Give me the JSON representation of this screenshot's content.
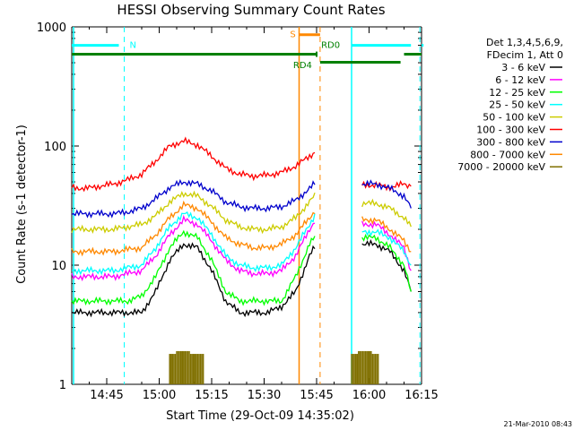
{
  "chart_data": {
    "type": "line",
    "title": "HESSI Observing Summary Count Rates",
    "xlabel": "Start Time (29-Oct-09 14:35:02)",
    "ylabel": "Count Rate (s-1 detector-1)",
    "y_scale": "log",
    "ylim": [
      1,
      1000
    ],
    "xlim": [
      "14:35",
      "16:15"
    ],
    "x_ticks": [
      "14:45",
      "15:00",
      "15:15",
      "15:30",
      "15:45",
      "16:00",
      "16:15"
    ],
    "y_ticks": [
      "1",
      "10",
      "100",
      "1000"
    ],
    "grid": false,
    "legend_position": "right",
    "legend_header": [
      "Det 1,3,4,5,6,9,",
      "FDecim 1, Att 0"
    ],
    "series": [
      {
        "name": "3 - 6 keV",
        "color": "#000000",
        "x": [
          "14:35",
          "14:39",
          "14:43",
          "14:47",
          "14:51",
          "14:55",
          "14:59",
          "15:03",
          "15:07",
          "15:11",
          "15:15",
          "15:19",
          "15:23",
          "15:27",
          "15:31",
          "15:35",
          "15:39",
          "15:43",
          "15:45",
          "15:58",
          "16:02",
          "16:06",
          "16:10",
          "16:12"
        ],
        "y": [
          4,
          4,
          4,
          4,
          4,
          4,
          6,
          11,
          15,
          14,
          9,
          5,
          4,
          4,
          4,
          4.5,
          6,
          12,
          15,
          15,
          15,
          13,
          9,
          6
        ]
      },
      {
        "name": "6 - 12 keV",
        "color": "#ff00ff",
        "x": [
          "14:35",
          "14:39",
          "14:43",
          "14:47",
          "14:51",
          "14:55",
          "14:59",
          "15:03",
          "15:07",
          "15:11",
          "15:15",
          "15:19",
          "15:23",
          "15:27",
          "15:31",
          "15:35",
          "15:39",
          "15:43",
          "15:45",
          "15:58",
          "16:02",
          "16:06",
          "16:10",
          "16:12"
        ],
        "y": [
          8,
          8,
          8,
          8,
          8.5,
          9,
          12,
          18,
          24,
          22,
          16,
          11,
          9,
          8.5,
          8.5,
          9,
          12,
          20,
          25,
          22,
          22,
          18,
          14,
          9
        ]
      },
      {
        "name": "12 - 25 keV",
        "color": "#00ff00",
        "x": [
          "14:35",
          "14:39",
          "14:43",
          "14:47",
          "14:51",
          "14:55",
          "14:59",
          "15:03",
          "15:07",
          "15:11",
          "15:15",
          "15:19",
          "15:23",
          "15:27",
          "15:31",
          "15:35",
          "15:39",
          "15:43",
          "15:45",
          "15:58",
          "16:02",
          "16:06",
          "16:10",
          "16:12"
        ],
        "y": [
          5,
          5,
          5,
          5,
          5,
          5.5,
          8,
          14,
          19,
          17,
          11,
          6,
          5,
          5,
          5,
          5,
          8,
          15,
          18,
          17,
          17,
          14,
          10,
          6
        ]
      },
      {
        "name": "25 - 50 keV",
        "color": "#00ffff",
        "x": [
          "14:35",
          "14:39",
          "14:43",
          "14:47",
          "14:51",
          "14:55",
          "14:59",
          "15:03",
          "15:07",
          "15:11",
          "15:15",
          "15:19",
          "15:23",
          "15:27",
          "15:31",
          "15:35",
          "15:39",
          "15:43",
          "15:45",
          "15:58",
          "16:02",
          "16:06",
          "16:10",
          "16:12"
        ],
        "y": [
          9,
          9,
          9,
          9,
          9.5,
          10,
          14,
          21,
          27,
          25,
          18,
          12,
          10,
          9.5,
          9.5,
          10,
          14,
          22,
          28,
          19,
          19,
          17,
          13,
          10
        ]
      },
      {
        "name": "50 - 100 keV",
        "color": "#cccc00",
        "x": [
          "14:35",
          "14:39",
          "14:43",
          "14:47",
          "14:51",
          "14:55",
          "14:59",
          "15:03",
          "15:07",
          "15:11",
          "15:15",
          "15:19",
          "15:23",
          "15:27",
          "15:31",
          "15:35",
          "15:39",
          "15:43",
          "15:45",
          "15:58",
          "16:02",
          "16:06",
          "16:10",
          "16:12"
        ],
        "y": [
          20,
          20,
          20,
          20,
          21,
          22,
          26,
          34,
          40,
          38,
          31,
          24,
          21,
          20,
          20,
          21,
          25,
          34,
          40,
          33,
          33,
          30,
          25,
          21
        ]
      },
      {
        "name": "100 - 300 keV",
        "color": "#ff0000",
        "x": [
          "14:35",
          "14:39",
          "14:43",
          "14:47",
          "14:51",
          "14:55",
          "14:59",
          "15:03",
          "15:07",
          "15:11",
          "15:15",
          "15:19",
          "15:23",
          "15:27",
          "15:31",
          "15:35",
          "15:39",
          "15:43",
          "15:45",
          "15:58",
          "16:02",
          "16:06",
          "16:10",
          "16:12"
        ],
        "y": [
          45,
          44,
          46,
          48,
          52,
          58,
          75,
          100,
          110,
          102,
          82,
          65,
          58,
          56,
          57,
          60,
          68,
          82,
          92,
          47,
          47,
          45,
          48,
          46
        ]
      },
      {
        "name": "300 - 800 keV",
        "color": "#0000cc",
        "x": [
          "14:35",
          "14:39",
          "14:43",
          "14:47",
          "14:51",
          "14:55",
          "14:59",
          "15:03",
          "15:07",
          "15:11",
          "15:15",
          "15:19",
          "15:23",
          "15:27",
          "15:31",
          "15:35",
          "15:39",
          "15:43",
          "15:45",
          "15:58",
          "16:02",
          "16:06",
          "16:10",
          "16:12"
        ],
        "y": [
          27,
          27,
          27,
          27,
          28,
          30,
          36,
          45,
          50,
          48,
          42,
          34,
          31,
          30,
          30,
          31,
          35,
          44,
          50,
          48,
          48,
          44,
          38,
          30
        ]
      },
      {
        "name": "800 - 7000 keV",
        "color": "#ff8800",
        "x": [
          "14:35",
          "14:39",
          "14:43",
          "14:47",
          "14:51",
          "14:55",
          "14:59",
          "15:03",
          "15:07",
          "15:11",
          "15:15",
          "15:19",
          "15:23",
          "15:27",
          "15:31",
          "15:35",
          "15:39",
          "15:43",
          "15:45",
          "15:58",
          "16:02",
          "16:06",
          "16:10",
          "16:12"
        ],
        "y": [
          13,
          13,
          13,
          13,
          13.5,
          14,
          18,
          25,
          32,
          30,
          23,
          17,
          15,
          14,
          14,
          15,
          18,
          25,
          30,
          24,
          24,
          20,
          16,
          13
        ]
      },
      {
        "name": "7000 - 20000 keV",
        "color": "#807000",
        "x": [
          "15:03",
          "15:05",
          "15:07",
          "15:09",
          "15:11",
          "15:55",
          "15:57",
          "15:59",
          "16:01"
        ],
        "y": [
          1.8,
          1.9,
          1.9,
          1.8,
          1.8,
          1.8,
          1.9,
          1.9,
          1.8
        ]
      }
    ],
    "annotations": [
      {
        "label": "N",
        "color": "#00ffff",
        "kind": "night",
        "start": "14:35",
        "end": "14:50"
      },
      {
        "label": "N",
        "color": "#00ffff",
        "kind": "night",
        "start": "15:55",
        "end": "16:13"
      },
      {
        "label": "S",
        "color": "#ff8800",
        "kind": "saa",
        "start": "15:40",
        "end": "15:46"
      },
      {
        "label": "RD4",
        "color": "#008000",
        "kind": "attenuator"
      },
      {
        "label": "RD0",
        "color": "#008000",
        "kind": "attenuator"
      }
    ]
  },
  "footer": {
    "timestamp": "21-Mar-2010 08:43"
  }
}
